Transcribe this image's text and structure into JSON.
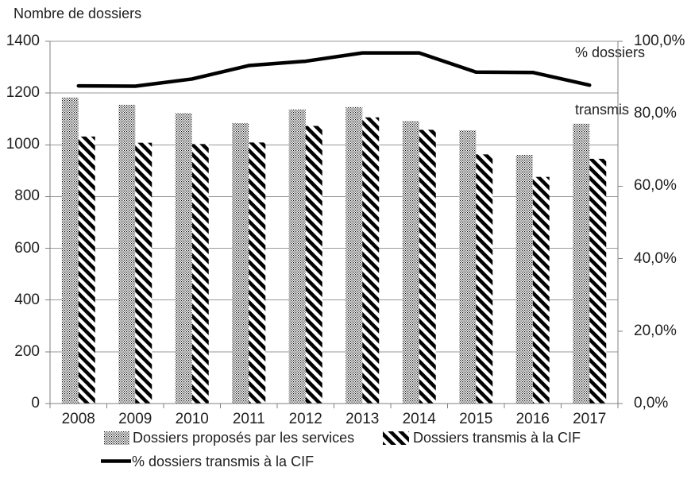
{
  "chart_data": {
    "type": "combo-bar-line",
    "title": "",
    "categories": [
      "2008",
      "2009",
      "2010",
      "2011",
      "2012",
      "2013",
      "2014",
      "2015",
      "2016",
      "2017"
    ],
    "series": [
      {
        "name": "Dossiers proposés par les services",
        "type": "bar",
        "axis": "left",
        "pattern": "dots",
        "values": [
          1183,
          1155,
          1122,
          1084,
          1137,
          1146,
          1092,
          1056,
          961,
          1082
        ]
      },
      {
        "name": "Dossiers transmis à la CIF",
        "type": "bar",
        "axis": "left",
        "pattern": "diagonal-stripes",
        "values": [
          1032,
          1008,
          1003,
          1009,
          1073,
          1106,
          1058,
          963,
          876,
          946
        ]
      },
      {
        "name": "% dossiers transmis à la CIF",
        "type": "line",
        "axis": "right",
        "values": [
          87.7,
          87.6,
          89.6,
          93.3,
          94.5,
          96.8,
          96.8,
          91.5,
          91.4,
          87.9
        ]
      }
    ],
    "left_axis": {
      "title": "Nombre de dossiers",
      "min": 0,
      "max": 1400,
      "step": 200,
      "tick_labels": [
        "0",
        "200",
        "400",
        "600",
        "800",
        "1000",
        "1200",
        "1400"
      ]
    },
    "right_axis": {
      "title_lines": [
        "% dossiers",
        "transmis"
      ],
      "min": 0,
      "max": 100,
      "step": 20,
      "tick_labels": [
        "0,0%",
        "20,0%",
        "40,0%",
        "60,0%",
        "80,0%",
        "100,0%"
      ]
    },
    "grid": true,
    "legend_position": "bottom",
    "colors": {
      "bars_and_line": "#000000",
      "gridline": "#999999",
      "axis_line": "#808080",
      "text": "#1f1f1f",
      "background": "#ffffff"
    }
  }
}
